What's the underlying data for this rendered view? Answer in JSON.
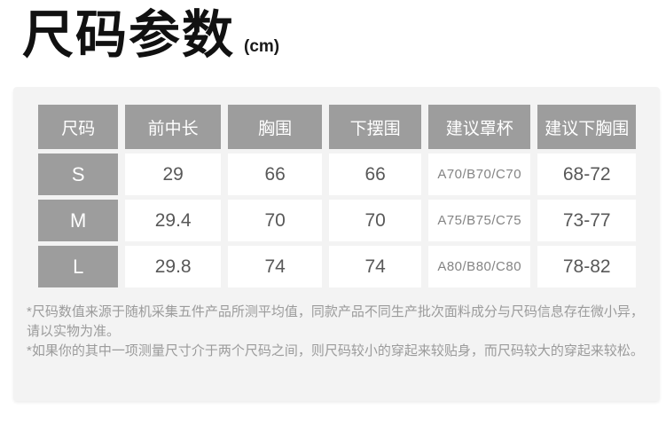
{
  "page": {
    "title": "尺码参数",
    "unit": "(cm)"
  },
  "table": {
    "headers": [
      "尺码",
      "前中长",
      "胸围",
      "下摆围",
      "建议罩杯",
      "建议下胸围"
    ],
    "rows": [
      {
        "size": "S",
        "front_length": "29",
        "bust": "66",
        "hem": "66",
        "cup": "A70/B70/C70",
        "underbust": "68-72"
      },
      {
        "size": "M",
        "front_length": "29.4",
        "bust": "70",
        "hem": "70",
        "cup": "A75/B75/C75",
        "underbust": "73-77"
      },
      {
        "size": "L",
        "front_length": "29.8",
        "bust": "74",
        "hem": "74",
        "cup": "A80/B80/C80",
        "underbust": "78-82"
      }
    ]
  },
  "notes": [
    "*尺码数值来源于随机采集五件产品所测平均值，同款产品不同生产批次面料成分与尺码信息存在微小异，请以实物为准。",
    "*如果你的其中一项测量尺寸介于两个尺码之间，则尺码较小的穿起来较贴身，而尺码较大的穿起来较松。"
  ],
  "colors": {
    "header_bg": "#9d9d9d",
    "panel_bg": "#f3f3f3",
    "cell_bg": "#ffffff",
    "title_color": "#111111",
    "value_color": "#585858",
    "note_color": "#9b9b9b"
  }
}
